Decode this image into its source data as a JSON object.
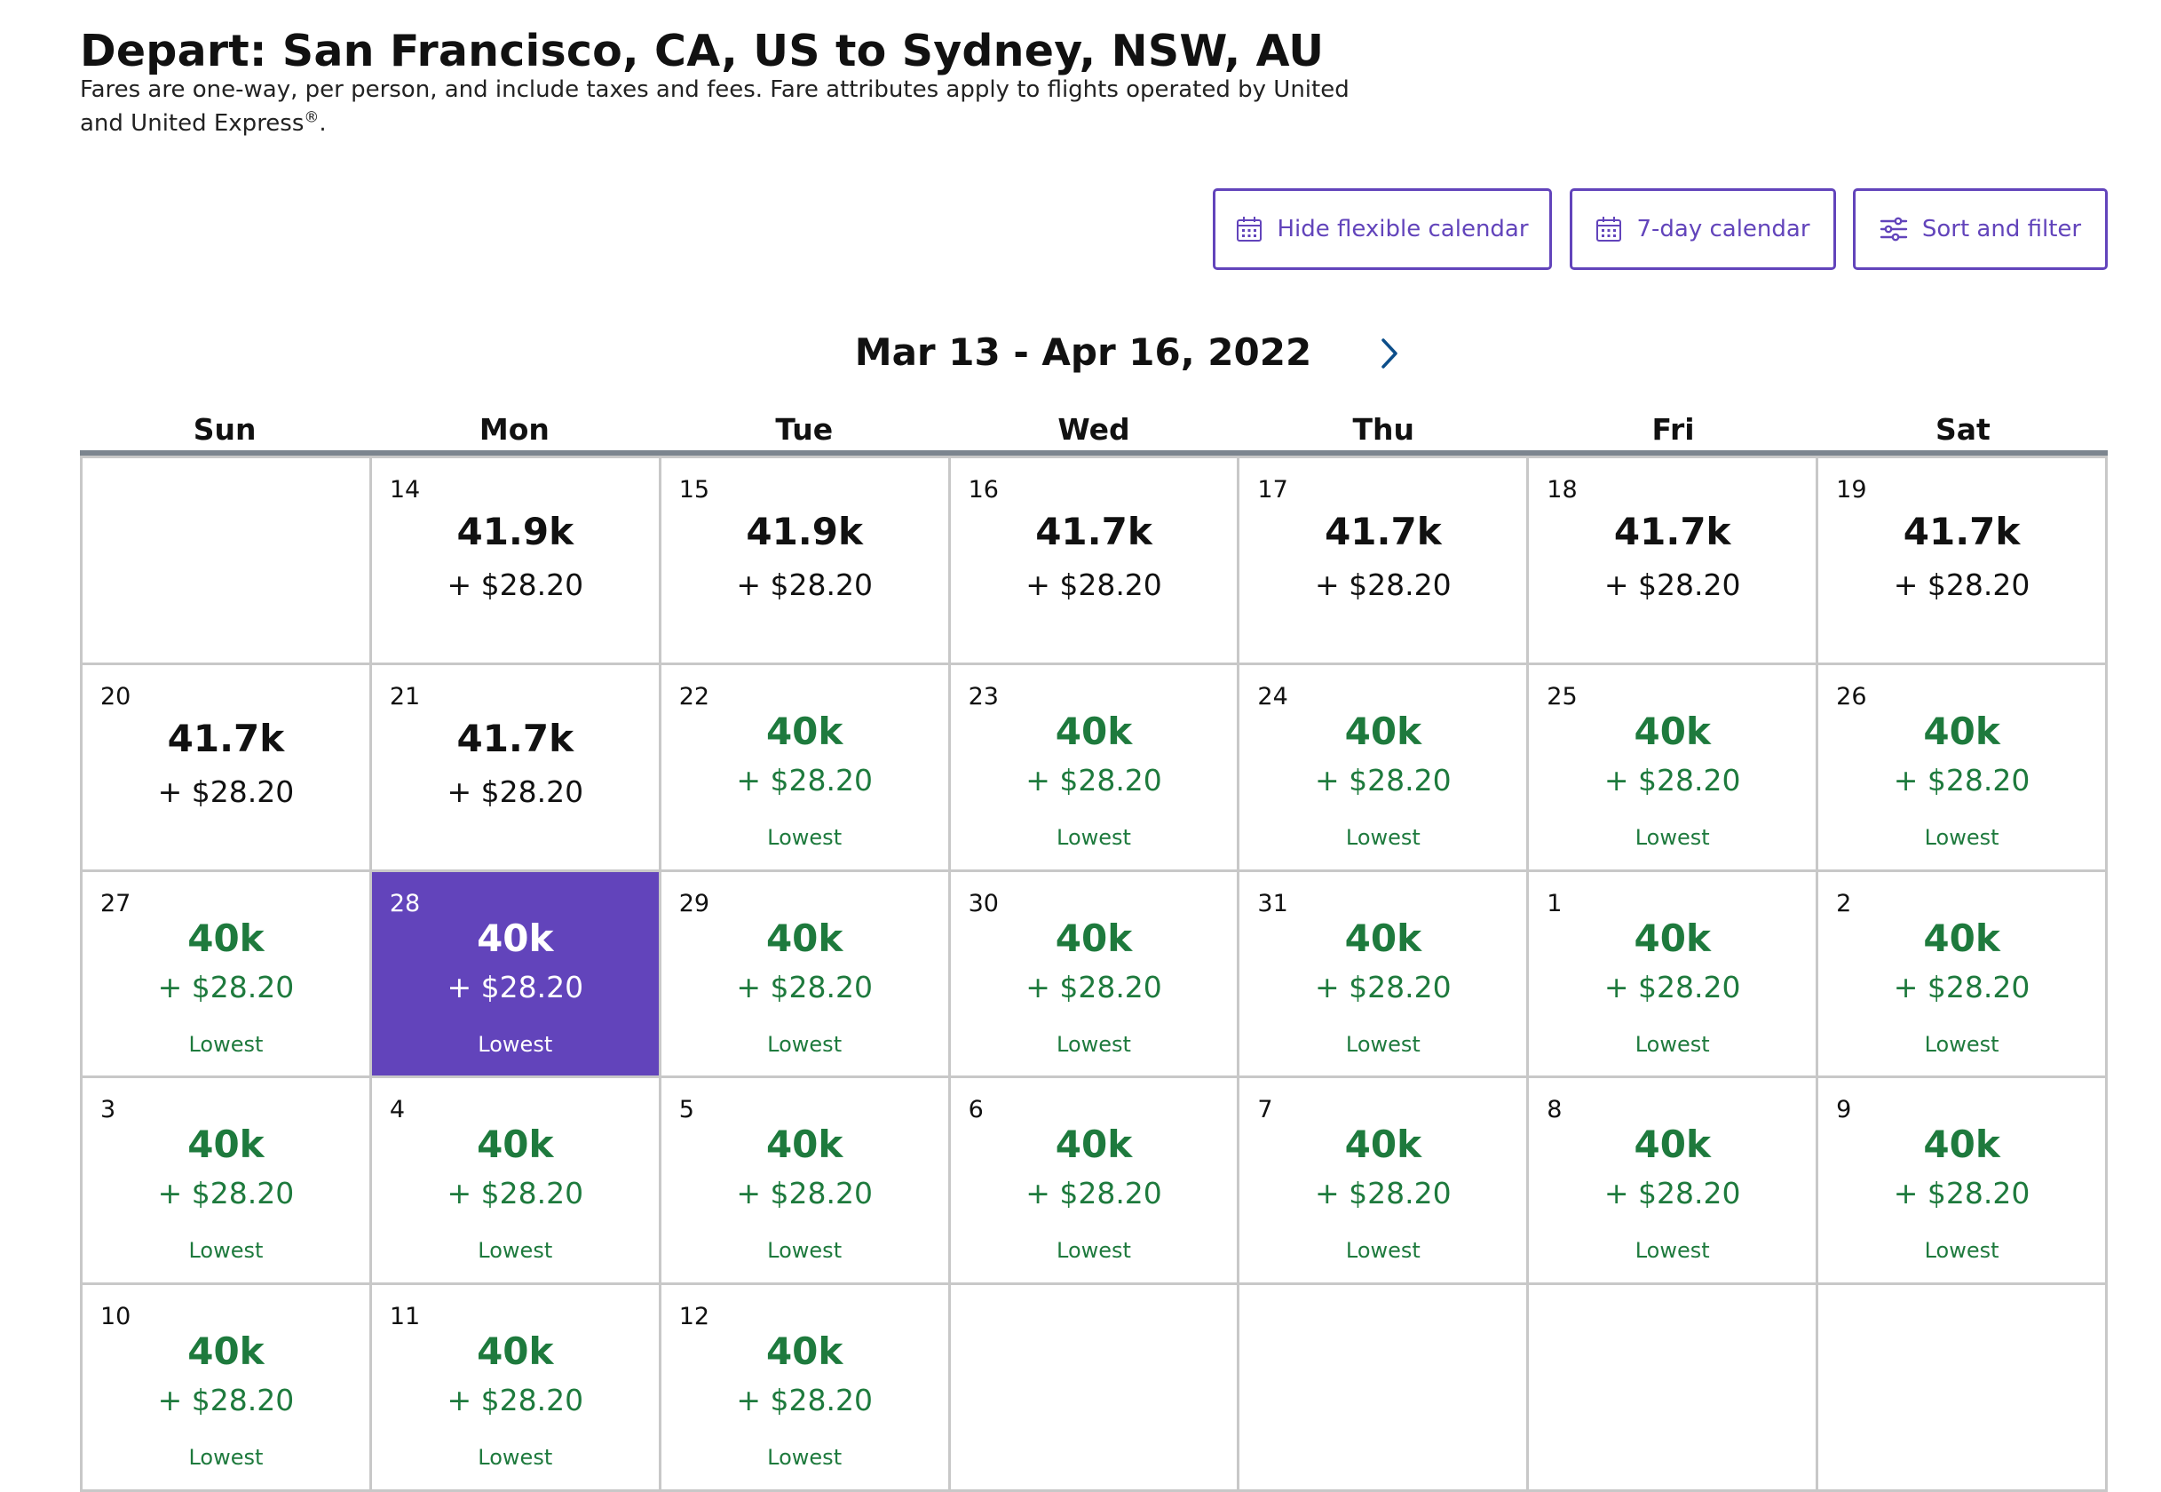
{
  "header": {
    "title": "Depart: San Francisco, CA, US to Sydney, NSW, AU",
    "note": "Fares are one-way, per person, and include taxes and fees. Fare attributes apply to flights operated by United and United Express",
    "note_mark": "®",
    "note_end": "."
  },
  "toolbar": {
    "hide_calendar_label": "Hide flexible calendar",
    "seven_day_label": "7-day calendar",
    "sort_filter_label": "Sort and filter"
  },
  "calendar": {
    "range": "Mar 13 - Apr 16, 2022",
    "weekdays": [
      "Sun",
      "Mon",
      "Tue",
      "Wed",
      "Thu",
      "Fri",
      "Sat"
    ],
    "selected_date": "28",
    "accent_color": "#6244bb",
    "lowest_color": "#1e7a3d",
    "weeks": [
      [
        null,
        {
          "date": "14",
          "miles": "41.9k",
          "cash": "+ $28.20",
          "tag": ""
        },
        {
          "date": "15",
          "miles": "41.9k",
          "cash": "+ $28.20",
          "tag": ""
        },
        {
          "date": "16",
          "miles": "41.7k",
          "cash": "+ $28.20",
          "tag": ""
        },
        {
          "date": "17",
          "miles": "41.7k",
          "cash": "+ $28.20",
          "tag": ""
        },
        {
          "date": "18",
          "miles": "41.7k",
          "cash": "+ $28.20",
          "tag": ""
        },
        {
          "date": "19",
          "miles": "41.7k",
          "cash": "+ $28.20",
          "tag": ""
        }
      ],
      [
        {
          "date": "20",
          "miles": "41.7k",
          "cash": "+ $28.20",
          "tag": ""
        },
        {
          "date": "21",
          "miles": "41.7k",
          "cash": "+ $28.20",
          "tag": ""
        },
        {
          "date": "22",
          "miles": "40k",
          "cash": "+ $28.20",
          "tag": "Lowest"
        },
        {
          "date": "23",
          "miles": "40k",
          "cash": "+ $28.20",
          "tag": "Lowest"
        },
        {
          "date": "24",
          "miles": "40k",
          "cash": "+ $28.20",
          "tag": "Lowest"
        },
        {
          "date": "25",
          "miles": "40k",
          "cash": "+ $28.20",
          "tag": "Lowest"
        },
        {
          "date": "26",
          "miles": "40k",
          "cash": "+ $28.20",
          "tag": "Lowest"
        }
      ],
      [
        {
          "date": "27",
          "miles": "40k",
          "cash": "+ $28.20",
          "tag": "Lowest"
        },
        {
          "date": "28",
          "miles": "40k",
          "cash": "+ $28.20",
          "tag": "Lowest"
        },
        {
          "date": "29",
          "miles": "40k",
          "cash": "+ $28.20",
          "tag": "Lowest"
        },
        {
          "date": "30",
          "miles": "40k",
          "cash": "+ $28.20",
          "tag": "Lowest"
        },
        {
          "date": "31",
          "miles": "40k",
          "cash": "+ $28.20",
          "tag": "Lowest"
        },
        {
          "date": "1",
          "miles": "40k",
          "cash": "+ $28.20",
          "tag": "Lowest"
        },
        {
          "date": "2",
          "miles": "40k",
          "cash": "+ $28.20",
          "tag": "Lowest"
        }
      ],
      [
        {
          "date": "3",
          "miles": "40k",
          "cash": "+ $28.20",
          "tag": "Lowest"
        },
        {
          "date": "4",
          "miles": "40k",
          "cash": "+ $28.20",
          "tag": "Lowest"
        },
        {
          "date": "5",
          "miles": "40k",
          "cash": "+ $28.20",
          "tag": "Lowest"
        },
        {
          "date": "6",
          "miles": "40k",
          "cash": "+ $28.20",
          "tag": "Lowest"
        },
        {
          "date": "7",
          "miles": "40k",
          "cash": "+ $28.20",
          "tag": "Lowest"
        },
        {
          "date": "8",
          "miles": "40k",
          "cash": "+ $28.20",
          "tag": "Lowest"
        },
        {
          "date": "9",
          "miles": "40k",
          "cash": "+ $28.20",
          "tag": "Lowest"
        }
      ],
      [
        {
          "date": "10",
          "miles": "40k",
          "cash": "+ $28.20",
          "tag": "Lowest"
        },
        {
          "date": "11",
          "miles": "40k",
          "cash": "+ $28.20",
          "tag": "Lowest"
        },
        {
          "date": "12",
          "miles": "40k",
          "cash": "+ $28.20",
          "tag": "Lowest"
        },
        null,
        null,
        null,
        null
      ]
    ]
  }
}
